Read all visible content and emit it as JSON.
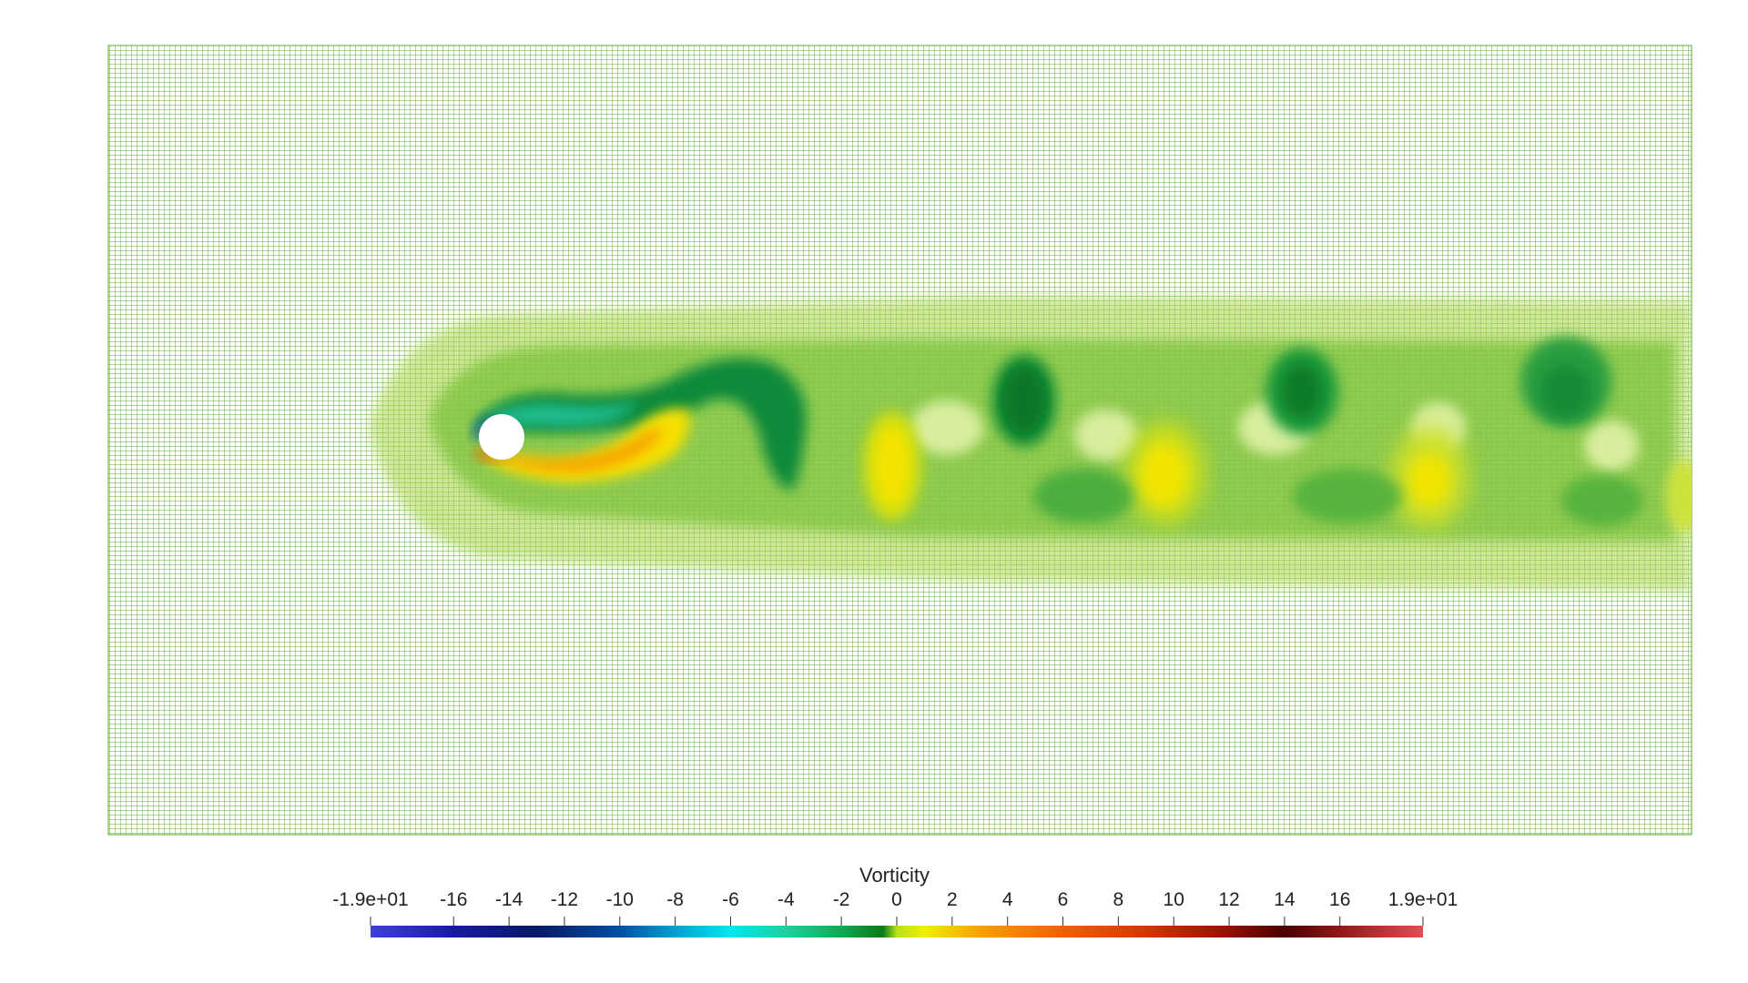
{
  "scene": {
    "mesh_color": "#58ad2a",
    "background_color": "#ffffff",
    "obstacle_color": "#ffffff"
  },
  "colorbar": {
    "title": "Vorticity",
    "range": [
      -19,
      19
    ],
    "tick_values": [
      -19,
      -16,
      -14,
      -12,
      -10,
      -8,
      -6,
      -4,
      -2,
      0,
      2,
      4,
      6,
      8,
      10,
      12,
      14,
      16,
      19
    ],
    "tick_labels": [
      "-1.9e+01",
      "-16",
      "-14",
      "-12",
      "-10",
      "-8",
      "-6",
      "-4",
      "-2",
      "0",
      "2",
      "4",
      "6",
      "8",
      "10",
      "12",
      "14",
      "16",
      "1.9e+01"
    ],
    "colormap_stops": [
      {
        "value": -19,
        "color": "#4040d8"
      },
      {
        "value": -16,
        "color": "#1a1aa0"
      },
      {
        "value": -13,
        "color": "#061a66"
      },
      {
        "value": -10,
        "color": "#0050a0"
      },
      {
        "value": -8,
        "color": "#00a0d0"
      },
      {
        "value": -6,
        "color": "#00e6f0"
      },
      {
        "value": -4,
        "color": "#20d0a0"
      },
      {
        "value": -2,
        "color": "#10a850"
      },
      {
        "value": -0.5,
        "color": "#0a7a18"
      },
      {
        "value": 0,
        "color": "#b8e020"
      },
      {
        "value": 1,
        "color": "#f0f000"
      },
      {
        "value": 3,
        "color": "#f8a000"
      },
      {
        "value": 6,
        "color": "#f06000"
      },
      {
        "value": 9,
        "color": "#d03800"
      },
      {
        "value": 12,
        "color": "#901000"
      },
      {
        "value": 14,
        "color": "#4a0000"
      },
      {
        "value": 16,
        "color": "#901818"
      },
      {
        "value": 19,
        "color": "#e05050"
      }
    ]
  }
}
